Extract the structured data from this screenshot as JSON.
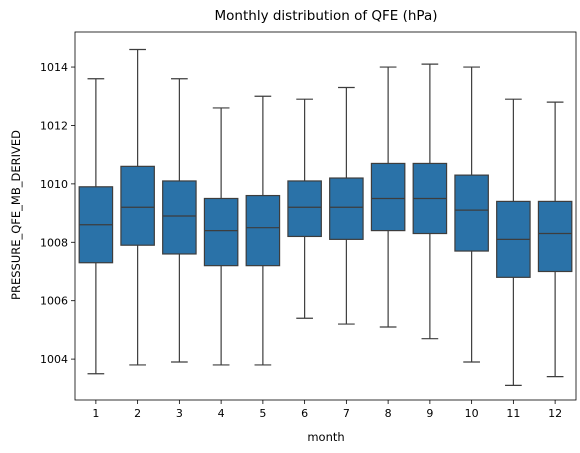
{
  "chart_data": {
    "type": "boxplot",
    "title": "Monthly distribution of QFE (hPa)",
    "xlabel": "month",
    "ylabel": "PRESSURE_QFE_MB_DERIVED",
    "ylim": [
      1002.6,
      1015.2
    ],
    "yticks": [
      1004,
      1006,
      1008,
      1010,
      1012,
      1014
    ],
    "categories": [
      "1",
      "2",
      "3",
      "4",
      "5",
      "6",
      "7",
      "8",
      "9",
      "10",
      "11",
      "12"
    ],
    "boxes": [
      {
        "month": "1",
        "whisker_low": 1003.5,
        "q1": 1007.3,
        "median": 1008.6,
        "q3": 1009.9,
        "whisker_high": 1013.6
      },
      {
        "month": "2",
        "whisker_low": 1003.8,
        "q1": 1007.9,
        "median": 1009.2,
        "q3": 1010.6,
        "whisker_high": 1014.6
      },
      {
        "month": "3",
        "whisker_low": 1003.9,
        "q1": 1007.6,
        "median": 1008.9,
        "q3": 1010.1,
        "whisker_high": 1013.6
      },
      {
        "month": "4",
        "whisker_low": 1003.8,
        "q1": 1007.2,
        "median": 1008.4,
        "q3": 1009.5,
        "whisker_high": 1012.6
      },
      {
        "month": "5",
        "whisker_low": 1003.8,
        "q1": 1007.2,
        "median": 1008.5,
        "q3": 1009.6,
        "whisker_high": 1013.0
      },
      {
        "month": "6",
        "whisker_low": 1005.4,
        "q1": 1008.2,
        "median": 1009.2,
        "q3": 1010.1,
        "whisker_high": 1012.9
      },
      {
        "month": "7",
        "whisker_low": 1005.2,
        "q1": 1008.1,
        "median": 1009.2,
        "q3": 1010.2,
        "whisker_high": 1013.3
      },
      {
        "month": "8",
        "whisker_low": 1005.1,
        "q1": 1008.4,
        "median": 1009.5,
        "q3": 1010.7,
        "whisker_high": 1014.0
      },
      {
        "month": "9",
        "whisker_low": 1004.7,
        "q1": 1008.3,
        "median": 1009.5,
        "q3": 1010.7,
        "whisker_high": 1014.1
      },
      {
        "month": "10",
        "whisker_low": 1003.9,
        "q1": 1007.7,
        "median": 1009.1,
        "q3": 1010.3,
        "whisker_high": 1014.0
      },
      {
        "month": "11",
        "whisker_low": 1003.1,
        "q1": 1006.8,
        "median": 1008.1,
        "q3": 1009.4,
        "whisker_high": 1012.9
      },
      {
        "month": "12",
        "whisker_low": 1003.4,
        "q1": 1007.0,
        "median": 1008.3,
        "q3": 1009.4,
        "whisker_high": 1012.8
      }
    ],
    "colors": {
      "box_fill": "#2a72a8",
      "lines": "#3d3d3d",
      "axes": "#000000"
    },
    "grid": false
  }
}
